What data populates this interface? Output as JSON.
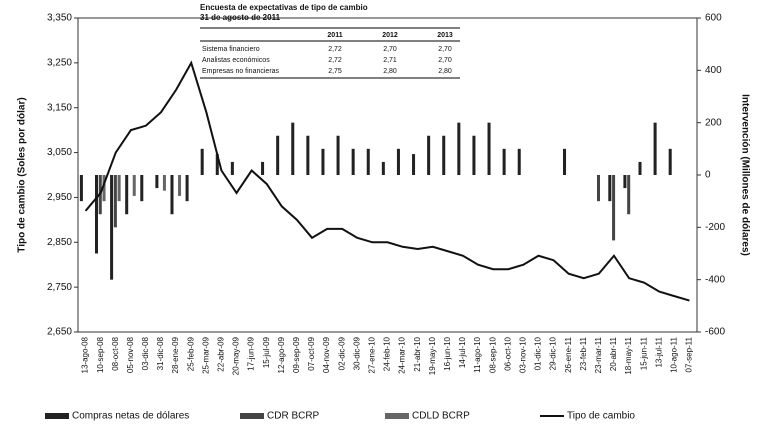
{
  "chart_data": {
    "type": "combo",
    "ylabel": "Tipo de cambio (Soles por dólar)",
    "y2label": "Intervención (Millones de dólares)",
    "categories": [
      "13-ago-08",
      "10-sep-08",
      "08-oct-08",
      "05-nov-08",
      "03-dic-08",
      "31-dic-08",
      "28-ene-09",
      "25-feb-09",
      "25-mar-09",
      "22-abr-09",
      "20-may-09",
      "17-jun-09",
      "15-jul-09",
      "12-ago-09",
      "09-sep-09",
      "07-oct-09",
      "04-nov-09",
      "02-dic-09",
      "30-dic-09",
      "27-ene-10",
      "24-feb-10",
      "24-mar-10",
      "21-abr-10",
      "19-may-10",
      "16-jun-10",
      "14-jul-10",
      "11-ago-10",
      "08-sep-10",
      "06-oct-10",
      "03-nov-10",
      "01-dic-10",
      "29-dic-10",
      "26-ene-11",
      "23-feb-11",
      "23-mar-11",
      "20-abr-11",
      "18-may-11",
      "15-jun-11",
      "13-jul-11",
      "10-ago-11",
      "07-sep-11"
    ],
    "ylim": [
      2650,
      3350
    ],
    "yticks": [
      {
        "value": 2650,
        "label": "2,650"
      },
      {
        "value": 2750,
        "label": "2,750"
      },
      {
        "value": 2850,
        "label": "2,850"
      },
      {
        "value": 2950,
        "label": "2,950"
      },
      {
        "value": 3050,
        "label": "3,050"
      },
      {
        "value": 3150,
        "label": "3,150"
      },
      {
        "value": 3250,
        "label": "3,250"
      },
      {
        "value": 3350,
        "label": "3,350"
      }
    ],
    "y2lim": [
      -600,
      600
    ],
    "y2ticks": [
      -600,
      -400,
      -200,
      0,
      200,
      400,
      600
    ],
    "series": [
      {
        "name": "Compras netas de dólares",
        "type": "bar",
        "axis": "y2",
        "color": "#222222",
        "values": [
          -100,
          -300,
          -400,
          -150,
          -100,
          -50,
          -150,
          -100,
          100,
          80,
          50,
          0,
          50,
          150,
          200,
          150,
          100,
          150,
          100,
          100,
          50,
          100,
          80,
          150,
          150,
          200,
          150,
          200,
          100,
          100,
          0,
          0,
          100,
          0,
          0,
          -100,
          -50,
          50,
          200,
          100,
          0
        ]
      },
      {
        "name": "CDR BCRP",
        "type": "bar",
        "axis": "y2",
        "color": "#444444",
        "values": [
          0,
          -150,
          -200,
          0,
          0,
          0,
          0,
          0,
          0,
          0,
          0,
          0,
          0,
          0,
          0,
          0,
          0,
          0,
          0,
          0,
          0,
          0,
          0,
          0,
          0,
          0,
          0,
          0,
          0,
          0,
          0,
          0,
          0,
          0,
          -100,
          -250,
          -150,
          0,
          0,
          0,
          0
        ]
      },
      {
        "name": "CDLD BCRP",
        "type": "bar",
        "axis": "y2",
        "color": "#666666",
        "values": [
          0,
          -100,
          -100,
          -80,
          0,
          -60,
          -80,
          0,
          0,
          0,
          0,
          0,
          0,
          0,
          0,
          0,
          0,
          0,
          0,
          0,
          0,
          0,
          0,
          0,
          0,
          0,
          0,
          0,
          0,
          0,
          0,
          0,
          0,
          0,
          0,
          0,
          0,
          0,
          0,
          0,
          0
        ]
      },
      {
        "name": "Tipo de cambio",
        "type": "line",
        "axis": "y",
        "color": "#111111",
        "values": [
          2920,
          2960,
          3050,
          3100,
          3110,
          3140,
          3190,
          3250,
          3140,
          3010,
          2960,
          3010,
          2980,
          2930,
          2900,
          2860,
          2880,
          2880,
          2860,
          2850,
          2850,
          2840,
          2835,
          2840,
          2830,
          2820,
          2800,
          2790,
          2790,
          2800,
          2820,
          2810,
          2780,
          2770,
          2780,
          2820,
          2770,
          2760,
          2740,
          2730,
          2720
        ]
      }
    ],
    "inset": {
      "title": "Encuesta de expectativas de tipo de cambio",
      "subtitle": "31 de agosto de 2011",
      "columns": [
        "2011",
        "2012",
        "2013"
      ],
      "rows": [
        {
          "label": "Sistema financiero",
          "values": [
            "2,72",
            "2,70",
            "2,70"
          ]
        },
        {
          "label": "Analistas económicos",
          "values": [
            "2,72",
            "2,71",
            "2,70"
          ]
        },
        {
          "label": "Empresas no financieras",
          "values": [
            "2,75",
            "2,80",
            "2,80"
          ]
        }
      ]
    }
  }
}
